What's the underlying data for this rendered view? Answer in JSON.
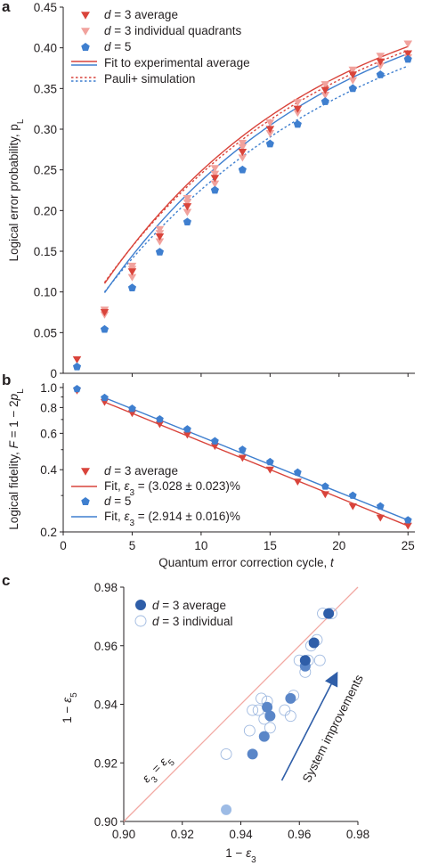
{
  "colors": {
    "d3": "#d9443b",
    "d3_light": "#f1a29d",
    "d5": "#3f7fcf",
    "c_dark": "#2f5ea8",
    "c_mid": "#5a86c8",
    "c_light": "#9dbbe5",
    "c_ring": "#9fb9e0",
    "identity_line": "#f2a8a2"
  },
  "chart_data": [
    {
      "panel": "a",
      "type": "line",
      "xlabel": "",
      "ylabel": "Logical error probability, p",
      "ylabel_sub": "L",
      "xlim": [
        0,
        25.5
      ],
      "ylim": [
        0,
        0.45
      ],
      "yticks": [
        "0",
        "0.05",
        "0.10",
        "0.15",
        "0.20",
        "0.25",
        "0.30",
        "0.35",
        "0.40",
        "0.45"
      ],
      "legend": [
        {
          "key": "d3avg",
          "prefix": "d",
          "label": " = 3 average"
        },
        {
          "key": "d3ind",
          "prefix": "d",
          "label": " = 3 individual quadrants"
        },
        {
          "key": "d5",
          "prefix": "d",
          "label": " = 5"
        },
        {
          "key": "fit",
          "prefix": "",
          "label": "Fit to experimental average"
        },
        {
          "key": "sim",
          "prefix": "",
          "label": "Pauli+ simulation"
        }
      ],
      "series": [
        {
          "name": "d = 3 average",
          "x": [
            1,
            3,
            5,
            7,
            9,
            11,
            13,
            15,
            17,
            19,
            21,
            23,
            25
          ],
          "y": [
            0.017,
            0.075,
            0.125,
            0.168,
            0.205,
            0.24,
            0.272,
            0.3,
            0.325,
            0.348,
            0.367,
            0.383,
            0.393
          ]
        },
        {
          "name": "d = 3 individual quadrants",
          "x": [
            3,
            3,
            5,
            5,
            5,
            7,
            7,
            7,
            9,
            9,
            9,
            11,
            11,
            11,
            13,
            13,
            13,
            15,
            15,
            17,
            17,
            19,
            19,
            21,
            21,
            23,
            23,
            25,
            25
          ],
          "y": [
            0.072,
            0.078,
            0.118,
            0.128,
            0.132,
            0.162,
            0.172,
            0.177,
            0.198,
            0.21,
            0.215,
            0.233,
            0.245,
            0.252,
            0.265,
            0.278,
            0.283,
            0.295,
            0.308,
            0.32,
            0.333,
            0.342,
            0.355,
            0.36,
            0.373,
            0.378,
            0.39,
            0.388,
            0.405
          ]
        },
        {
          "name": "d = 5",
          "x": [
            1,
            3,
            5,
            7,
            9,
            11,
            13,
            15,
            17,
            19,
            21,
            23,
            25
          ],
          "y": [
            0.008,
            0.054,
            0.105,
            0.149,
            0.186,
            0.225,
            0.25,
            0.282,
            0.306,
            0.334,
            0.35,
            0.367,
            0.386
          ]
        }
      ]
    },
    {
      "panel": "b",
      "type": "line",
      "xlabel": "Quantum error correction cycle, t",
      "ylabel": "Logical fidelity, F = 1 − 2p",
      "ylabel_sub": "L",
      "scale": "log",
      "xlim": [
        0,
        25.5
      ],
      "ylim": [
        0.2,
        1.05
      ],
      "xticks": [
        "0",
        "5",
        "10",
        "15",
        "20",
        "25"
      ],
      "yticks": [
        {
          "v": 1.0,
          "l": "1.0"
        },
        {
          "v": 0.8,
          "l": "0.8"
        },
        {
          "v": 0.6,
          "l": "0.6"
        },
        {
          "v": 0.4,
          "l": "0.4"
        },
        {
          "v": 0.2,
          "l": "0.2"
        }
      ],
      "legend": [
        {
          "key": "d3avg",
          "prefix": "d",
          "label": " = 3 average"
        },
        {
          "key": "fit3",
          "prefix": "Fit, ε",
          "sub": "3",
          "label": " = (3.028 ± 0.023)%"
        },
        {
          "key": "d5",
          "prefix": "d",
          "label": " = 5"
        },
        {
          "key": "fit5",
          "prefix": "Fit, ε",
          "sub": "3",
          "label": " = (2.914 ± 0.016)%"
        }
      ],
      "series": [
        {
          "name": "d = 3 average",
          "x": [
            1,
            3,
            5,
            7,
            9,
            11,
            13,
            15,
            17,
            19,
            21,
            23,
            25
          ],
          "y": [
            0.966,
            0.85,
            0.75,
            0.664,
            0.59,
            0.52,
            0.456,
            0.4,
            0.35,
            0.304,
            0.266,
            0.234,
            0.214
          ]
        },
        {
          "name": "d = 5",
          "x": [
            1,
            3,
            5,
            7,
            9,
            11,
            13,
            15,
            17,
            19,
            21,
            23,
            25
          ],
          "y": [
            0.984,
            0.892,
            0.79,
            0.702,
            0.628,
            0.55,
            0.5,
            0.436,
            0.388,
            0.332,
            0.3,
            0.266,
            0.228
          ]
        }
      ]
    },
    {
      "panel": "c",
      "type": "scatter",
      "xlabel": "1 − ε",
      "xlabel_sub": "3",
      "ylabel": "1 − ε",
      "ylabel_sub": "5",
      "xlim": [
        0.9,
        0.98
      ],
      "ylim": [
        0.9,
        0.98
      ],
      "xticks": [
        "0.90",
        "0.92",
        "0.94",
        "0.96",
        "0.98"
      ],
      "yticks": [
        "0.90",
        "0.92",
        "0.94",
        "0.96",
        "0.98"
      ],
      "identity_label": "ε",
      "identity_sub1": "3",
      "identity_mid": " = ε",
      "identity_sub2": "5",
      "arrow_label": "System improvements",
      "legend": [
        {
          "key": "avg",
          "prefix": "d",
          "label": " = 3 average"
        },
        {
          "key": "ind",
          "prefix": "d",
          "label": " = 3 individual"
        }
      ],
      "series": [
        {
          "name": "d = 3 average",
          "points": [
            [
              0.935,
              0.904,
              "light"
            ],
            [
              0.944,
              0.923,
              "mid"
            ],
            [
              0.948,
              0.929,
              "mid"
            ],
            [
              0.949,
              0.939,
              "mid"
            ],
            [
              0.95,
              0.936,
              "mid"
            ],
            [
              0.957,
              0.942,
              "mid"
            ],
            [
              0.962,
              0.953,
              "mid"
            ],
            [
              0.962,
              0.955,
              "dark"
            ],
            [
              0.965,
              0.961,
              "dark"
            ],
            [
              0.97,
              0.971,
              "dark"
            ]
          ]
        },
        {
          "name": "d = 3 individual",
          "points": [
            [
              0.935,
              0.923
            ],
            [
              0.943,
              0.931
            ],
            [
              0.944,
              0.938
            ],
            [
              0.946,
              0.938
            ],
            [
              0.947,
              0.942
            ],
            [
              0.948,
              0.935
            ],
            [
              0.949,
              0.941
            ],
            [
              0.95,
              0.932
            ],
            [
              0.955,
              0.938
            ],
            [
              0.957,
              0.936
            ],
            [
              0.958,
              0.943
            ],
            [
              0.96,
              0.955
            ],
            [
              0.962,
              0.951
            ],
            [
              0.963,
              0.955
            ],
            [
              0.964,
              0.96
            ],
            [
              0.966,
              0.962
            ],
            [
              0.967,
              0.955
            ],
            [
              0.968,
              0.971
            ],
            [
              0.971,
              0.971
            ]
          ]
        }
      ]
    }
  ],
  "panel_letters": [
    "a",
    "b",
    "c"
  ]
}
